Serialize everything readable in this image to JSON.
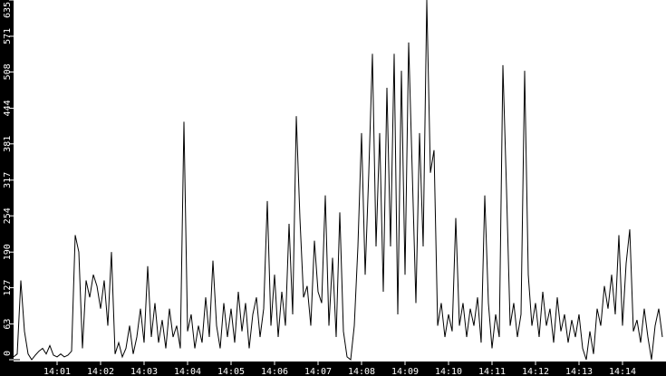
{
  "chart_data": {
    "type": "line",
    "title": "",
    "xlabel": "",
    "ylabel": "",
    "ylim": [
      0,
      635
    ],
    "xlim": [
      "14:00:00",
      "14:15:00"
    ],
    "yticks": [
      "0",
      "63",
      "127",
      "190",
      "254",
      "317",
      "381",
      "444",
      "508",
      "571",
      "635"
    ],
    "xticks": [
      "14:01",
      "14:02",
      "14:03",
      "14:04",
      "14:05",
      "14:06",
      "14:07",
      "14:08",
      "14:09",
      "14:10",
      "14:11",
      "14:12",
      "14:13",
      "14:14"
    ],
    "grid": false,
    "line_color": "#000000",
    "background_color": "#ffffff",
    "axis_color": "#000000",
    "x": [
      "14:00:00",
      "14:00:05",
      "14:00:10",
      "14:00:15",
      "14:00:20",
      "14:00:25",
      "14:00:30",
      "14:00:35",
      "14:00:40",
      "14:00:45",
      "14:00:50",
      "14:00:55",
      "14:01:00",
      "14:01:05",
      "14:01:10",
      "14:01:15",
      "14:01:20",
      "14:01:25",
      "14:01:30",
      "14:01:35",
      "14:01:40",
      "14:01:45",
      "14:01:50",
      "14:01:55",
      "14:02:00",
      "14:02:05",
      "14:02:10",
      "14:02:15",
      "14:02:20",
      "14:02:25",
      "14:02:30",
      "14:02:35",
      "14:02:40",
      "14:02:45",
      "14:02:50",
      "14:02:55",
      "14:03:00",
      "14:03:05",
      "14:03:10",
      "14:03:15",
      "14:03:20",
      "14:03:25",
      "14:03:30",
      "14:03:35",
      "14:03:40",
      "14:03:45",
      "14:03:50",
      "14:03:55",
      "14:04:00",
      "14:04:05",
      "14:04:10",
      "14:04:15",
      "14:04:20",
      "14:04:25",
      "14:04:30",
      "14:04:35",
      "14:04:40",
      "14:04:45",
      "14:04:50",
      "14:04:55",
      "14:05:00",
      "14:05:05",
      "14:05:10",
      "14:05:15",
      "14:05:20",
      "14:05:25",
      "14:05:30",
      "14:05:35",
      "14:05:40",
      "14:05:45",
      "14:05:50",
      "14:05:55",
      "14:06:00",
      "14:06:05",
      "14:06:10",
      "14:06:15",
      "14:06:20",
      "14:06:25",
      "14:06:30",
      "14:06:35",
      "14:06:40",
      "14:06:45",
      "14:06:50",
      "14:06:55",
      "14:07:00",
      "14:07:05",
      "14:07:10",
      "14:07:15",
      "14:07:20",
      "14:07:25",
      "14:07:30",
      "14:07:35",
      "14:07:40",
      "14:07:45",
      "14:07:50",
      "14:07:55",
      "14:08:00",
      "14:08:05",
      "14:08:10",
      "14:08:15",
      "14:08:20",
      "14:08:25",
      "14:08:30",
      "14:08:35",
      "14:08:40",
      "14:08:45",
      "14:08:50",
      "14:08:55",
      "14:09:00",
      "14:09:05",
      "14:09:10",
      "14:09:15",
      "14:09:20",
      "14:09:25",
      "14:09:30",
      "14:09:35",
      "14:09:40",
      "14:09:45",
      "14:09:50",
      "14:09:55",
      "14:10:00",
      "14:10:05",
      "14:10:10",
      "14:10:15",
      "14:10:20",
      "14:10:25",
      "14:10:30",
      "14:10:35",
      "14:10:40",
      "14:10:45",
      "14:10:50",
      "14:10:55",
      "14:11:00",
      "14:11:05",
      "14:11:10",
      "14:11:15",
      "14:11:20",
      "14:11:25",
      "14:11:30",
      "14:11:35",
      "14:11:40",
      "14:11:45",
      "14:11:50",
      "14:11:55",
      "14:12:00",
      "14:12:05",
      "14:12:10",
      "14:12:15",
      "14:12:20",
      "14:12:25",
      "14:12:30",
      "14:12:35",
      "14:12:40",
      "14:12:45",
      "14:12:50",
      "14:12:55",
      "14:13:00",
      "14:13:05",
      "14:13:10",
      "14:13:15",
      "14:13:20",
      "14:13:25",
      "14:13:30",
      "14:13:35",
      "14:13:40",
      "14:13:45",
      "14:13:50",
      "14:13:55",
      "14:14:00",
      "14:14:05",
      "14:14:10",
      "14:14:15",
      "14:14:20",
      "14:14:25",
      "14:14:30",
      "14:14:35",
      "14:14:40",
      "14:14:45",
      "14:14:50",
      "14:14:55"
    ],
    "series": [
      {
        "values": [
          5,
          10,
          140,
          50,
          10,
          0,
          8,
          15,
          20,
          10,
          25,
          8,
          5,
          10,
          5,
          8,
          15,
          220,
          190,
          20,
          140,
          110,
          150,
          130,
          90,
          140,
          60,
          190,
          10,
          30,
          5,
          20,
          60,
          10,
          40,
          90,
          30,
          165,
          40,
          100,
          30,
          70,
          20,
          90,
          40,
          60,
          20,
          420,
          50,
          80,
          20,
          60,
          30,
          110,
          40,
          175,
          60,
          20,
          100,
          40,
          90,
          30,
          120,
          50,
          100,
          20,
          80,
          110,
          40,
          90,
          280,
          60,
          150,
          40,
          120,
          60,
          240,
          80,
          430,
          250,
          110,
          130,
          60,
          210,
          120,
          100,
          290,
          60,
          180,
          40,
          260,
          50,
          5,
          0,
          60,
          200,
          400,
          150,
          330,
          540,
          200,
          400,
          120,
          480,
          200,
          540,
          80,
          510,
          150,
          560,
          330,
          100,
          400,
          200,
          635,
          330,
          370,
          60,
          100,
          40,
          80,
          50,
          250,
          60,
          100,
          40,
          90,
          60,
          110,
          30,
          290,
          100,
          20,
          80,
          40,
          520,
          300,
          60,
          100,
          40,
          80,
          510,
          150,
          60,
          100,
          40,
          120,
          60,
          90,
          30,
          110,
          50,
          80,
          30,
          70,
          40,
          80,
          20,
          0,
          50,
          10,
          90,
          60,
          130,
          90,
          150,
          80,
          220,
          60,
          170,
          230,
          50,
          70,
          30,
          90,
          40,
          0,
          60,
          90,
          40
        ]
      }
    ]
  }
}
